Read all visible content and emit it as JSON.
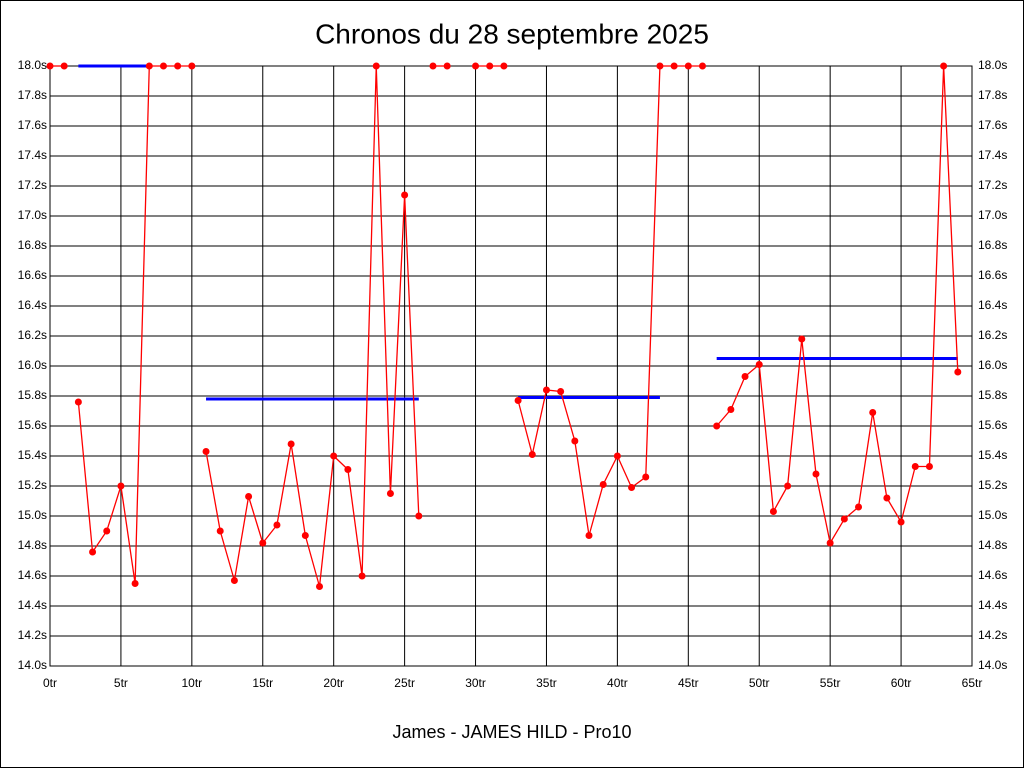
{
  "chart_data": {
    "type": "line",
    "title": "Chronos du 28 septembre 2025",
    "x_label": "James - JAMES HILD - Pro10",
    "xlim": [
      0,
      65
    ],
    "xticks": [
      {
        "value": 0,
        "label": "0tr"
      },
      {
        "value": 5,
        "label": "5tr"
      },
      {
        "value": 10,
        "label": "10tr"
      },
      {
        "value": 15,
        "label": "15tr"
      },
      {
        "value": 20,
        "label": "20tr"
      },
      {
        "value": 25,
        "label": "25tr"
      },
      {
        "value": 30,
        "label": "30tr"
      },
      {
        "value": 35,
        "label": "35tr"
      },
      {
        "value": 40,
        "label": "40tr"
      },
      {
        "value": 45,
        "label": "45tr"
      },
      {
        "value": 50,
        "label": "50tr"
      },
      {
        "value": 55,
        "label": "55tr"
      },
      {
        "value": 60,
        "label": "60tr"
      },
      {
        "value": 65,
        "label": "65tr"
      }
    ],
    "ylim": [
      14.0,
      18.0
    ],
    "yticks": [
      {
        "value": 14.0,
        "label": "14.0s"
      },
      {
        "value": 14.2,
        "label": "14.2s"
      },
      {
        "value": 14.4,
        "label": "14.4s"
      },
      {
        "value": 14.6,
        "label": "14.6s"
      },
      {
        "value": 14.8,
        "label": "14.8s"
      },
      {
        "value": 15.0,
        "label": "15.0s"
      },
      {
        "value": 15.2,
        "label": "15.2s"
      },
      {
        "value": 15.4,
        "label": "15.4s"
      },
      {
        "value": 15.6,
        "label": "15.6s"
      },
      {
        "value": 15.8,
        "label": "15.8s"
      },
      {
        "value": 16.0,
        "label": "16.0s"
      },
      {
        "value": 16.2,
        "label": "16.2s"
      },
      {
        "value": 16.4,
        "label": "16.4s"
      },
      {
        "value": 16.6,
        "label": "16.6s"
      },
      {
        "value": 16.8,
        "label": "16.8s"
      },
      {
        "value": 17.0,
        "label": "17.0s"
      },
      {
        "value": 17.2,
        "label": "17.2s"
      },
      {
        "value": 17.4,
        "label": "17.4s"
      },
      {
        "value": 17.6,
        "label": "17.6s"
      },
      {
        "value": 17.8,
        "label": "17.8s"
      },
      {
        "value": 18.0,
        "label": "18.0s"
      }
    ],
    "grid": true,
    "series": [
      {
        "color": "#ff0000",
        "x": [
          0,
          1
        ],
        "values": [
          18.0,
          18.0
        ]
      },
      {
        "color": "#ff0000",
        "x": [
          2,
          3,
          4,
          5,
          6,
          7,
          8,
          9,
          10
        ],
        "values": [
          15.76,
          14.76,
          14.9,
          15.2,
          14.55,
          18.0,
          18.0,
          18.0,
          18.0
        ]
      },
      {
        "color": "#ff0000",
        "x": [
          11,
          12,
          13,
          14,
          15,
          16,
          17,
          18,
          19,
          20,
          21,
          22,
          23,
          24,
          25,
          26
        ],
        "values": [
          15.43,
          14.9,
          14.57,
          15.13,
          14.82,
          14.94,
          15.48,
          14.87,
          14.53,
          15.4,
          15.31,
          14.6,
          18.0,
          15.15,
          17.14,
          15.0
        ]
      },
      {
        "color": "#ff0000",
        "x": [
          27,
          28
        ],
        "values": [
          18.0,
          18.0
        ]
      },
      {
        "color": "#ff0000",
        "x": [
          30,
          31,
          32
        ],
        "values": [
          18.0,
          18.0,
          18.0
        ]
      },
      {
        "color": "#ff0000",
        "x": [
          33,
          34,
          35,
          36,
          37,
          38,
          39,
          40,
          41,
          42,
          43,
          44,
          45,
          46
        ],
        "values": [
          15.77,
          15.41,
          15.84,
          15.83,
          15.5,
          14.87,
          15.21,
          15.4,
          15.19,
          15.26,
          18.0,
          18.0,
          18.0,
          18.0
        ]
      },
      {
        "color": "#ff0000",
        "x": [
          47,
          48,
          49,
          50,
          51,
          52,
          53,
          54,
          55,
          56,
          57,
          58,
          59,
          60,
          61,
          62,
          63,
          64
        ],
        "values": [
          15.6,
          15.71,
          15.93,
          16.01,
          15.03,
          15.2,
          16.18,
          15.28,
          14.82,
          14.98,
          15.06,
          15.69,
          15.12,
          14.96,
          15.33,
          15.33,
          18.0,
          15.96
        ]
      }
    ],
    "averages": [
      {
        "color": "#0000ff",
        "x": [
          2,
          7
        ],
        "value": 18.0
      },
      {
        "color": "#0000ff",
        "x": [
          11,
          26
        ],
        "value": 15.78
      },
      {
        "color": "#0000ff",
        "x": [
          33,
          43
        ],
        "value": 15.79
      },
      {
        "color": "#0000ff",
        "x": [
          47,
          64
        ],
        "value": 16.05
      }
    ]
  }
}
